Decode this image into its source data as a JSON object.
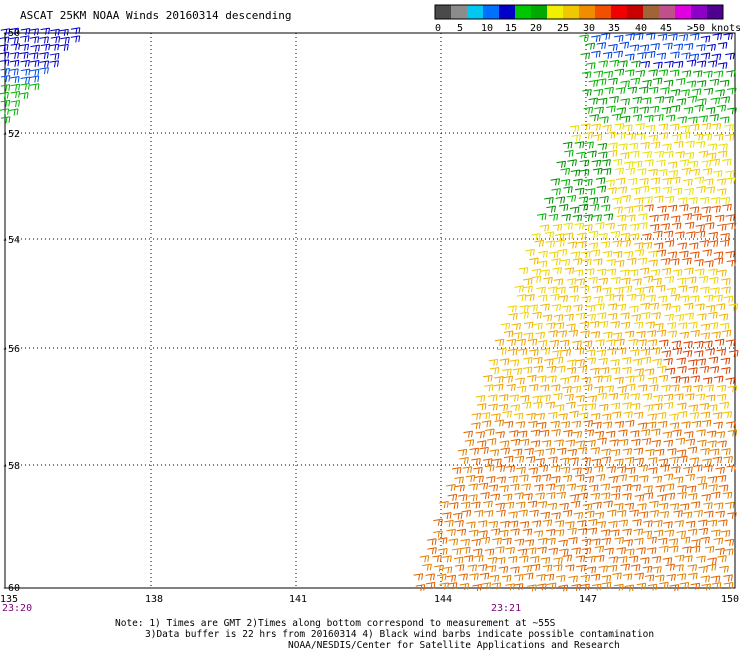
{
  "title": "ASCAT 25KM NOAA Winds 20160314 descending",
  "legend": {
    "ticks": [
      "0",
      "5",
      "10",
      "15",
      "20",
      "25",
      "30",
      "35",
      "40",
      "45",
      ">50 knots"
    ],
    "colors": [
      "#4a4a4a",
      "#8c8c8c",
      "#00c8f0",
      "#0070ff",
      "#0000c8",
      "#00c800",
      "#00aa00",
      "#f0f000",
      "#f0c800",
      "#f08c00",
      "#f05000",
      "#f00000",
      "#c80000",
      "#a06438",
      "#c0508c",
      "#e000e0",
      "#8c00c8",
      "#500090"
    ]
  },
  "axes": {
    "lon_ticks": [
      "135",
      "138",
      "141",
      "144",
      "147",
      "150"
    ],
    "lat_ticks": [
      "-50",
      "-52",
      "-54",
      "-56",
      "-58",
      "-60"
    ]
  },
  "times": {
    "left": "23:20",
    "mid": "23:21"
  },
  "notes": {
    "line1": "Note: 1) Times are GMT 2)Times along bottom correspond to measurement at ~55S",
    "line2": "3)Data buffer is 22 hrs from 20160314 4) Black wind barbs indicate possible contamination",
    "line3": "NOAA/NESDIS/Center for Satellite Applications and Research"
  }
}
